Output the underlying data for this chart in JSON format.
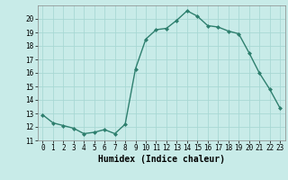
{
  "x": [
    0,
    1,
    2,
    3,
    4,
    5,
    6,
    7,
    8,
    9,
    10,
    11,
    12,
    13,
    14,
    15,
    16,
    17,
    18,
    19,
    20,
    21,
    22,
    23
  ],
  "y": [
    12.9,
    12.3,
    12.1,
    11.9,
    11.5,
    11.6,
    11.8,
    11.5,
    12.2,
    16.3,
    18.5,
    19.2,
    19.3,
    19.9,
    20.6,
    20.2,
    19.5,
    19.4,
    19.1,
    18.9,
    17.5,
    16.0,
    14.8,
    13.4
  ],
  "line_color": "#2e7f6e",
  "marker": "D",
  "marker_size": 2.0,
  "linewidth": 1.0,
  "bg_color": "#c8ebe8",
  "grid_color": "#a8d8d4",
  "xlabel": "Humidex (Indice chaleur)",
  "ylim": [
    11,
    21
  ],
  "xlim": [
    -0.5,
    23.5
  ],
  "yticks": [
    11,
    12,
    13,
    14,
    15,
    16,
    17,
    18,
    19,
    20
  ],
  "xticks": [
    0,
    1,
    2,
    3,
    4,
    5,
    6,
    7,
    8,
    9,
    10,
    11,
    12,
    13,
    14,
    15,
    16,
    17,
    18,
    19,
    20,
    21,
    22,
    23
  ],
  "tick_fontsize": 5.5,
  "xlabel_fontsize": 7.0
}
